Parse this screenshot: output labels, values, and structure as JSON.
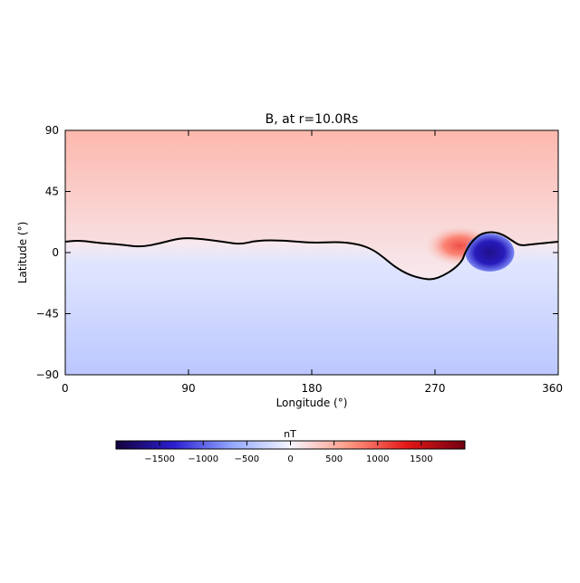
{
  "chart_data": {
    "type": "heatmap",
    "title": "B, at r=10.0Rs",
    "xlabel": "Longitude (°)",
    "ylabel": "Latitude (°)",
    "xlim": [
      0,
      360
    ],
    "ylim": [
      -90,
      90
    ],
    "x_ticks": [
      "0",
      "90",
      "180",
      "270",
      "360"
    ],
    "x_tick_values": [
      0,
      90,
      180,
      270,
      360
    ],
    "y_ticks": [
      "90",
      "45",
      "0",
      "−45",
      "−90"
    ],
    "y_tick_values": [
      90,
      45,
      0,
      -45,
      -90
    ],
    "field": {
      "north_hemisphere": "positive",
      "south_hemisphere": "negative",
      "north_pole_value_nT": 450,
      "south_pole_value_nT": -400,
      "near_sheet_value_nT": 100
    },
    "neutral_line": {
      "description": "B = 0 contour",
      "lon": [
        0,
        10,
        25,
        40,
        55,
        70,
        85,
        100,
        115,
        128,
        140,
        160,
        180,
        200,
        215,
        225,
        233,
        240,
        250,
        260,
        268,
        276,
        284,
        290,
        292,
        296,
        302,
        308,
        314,
        320,
        326,
        332,
        340,
        350,
        360
      ],
      "lat": [
        8,
        9,
        7,
        6,
        4,
        7,
        11,
        10,
        8,
        6,
        9,
        9,
        7,
        8,
        6,
        2,
        -4,
        -10,
        -16,
        -19,
        -20,
        -17,
        -12,
        -6,
        0,
        7,
        13,
        15,
        15,
        13,
        9,
        5,
        6,
        7,
        8
      ]
    },
    "features": [
      {
        "name": "positive_spot",
        "lon": 288,
        "lat": 5,
        "peak_nT": 1000
      },
      {
        "name": "negative_spot",
        "lon": 310,
        "lat": 0,
        "peak_nT": -1500
      }
    ],
    "colorbar": {
      "label": "nT",
      "range": [
        -2000,
        2000
      ],
      "ticks": [
        "−1500",
        "−1000",
        "−500",
        "0",
        "500",
        "1000",
        "1500"
      ],
      "tick_values": [
        -1500,
        -1000,
        -500,
        0,
        500,
        1000,
        1500
      ],
      "colors": [
        "#14003c",
        "#2b1fd0",
        "#93a8ff",
        "#f6f6ff",
        "#ff9a85",
        "#e41818",
        "#70000f"
      ]
    }
  }
}
